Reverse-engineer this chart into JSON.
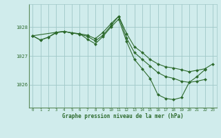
{
  "title": "Graphe pression niveau de la mer (hPa)",
  "bg_color": "#d0ecec",
  "grid_color": "#a0c8c8",
  "line_color": "#2d6a2d",
  "xlim_min": -0.5,
  "xlim_max": 23.5,
  "ylim_min": 1025.2,
  "ylim_max": 1028.8,
  "yticks": [
    1026,
    1027,
    1028
  ],
  "xticks": [
    0,
    1,
    2,
    3,
    4,
    5,
    6,
    7,
    8,
    9,
    10,
    11,
    12,
    13,
    14,
    15,
    16,
    17,
    18,
    19,
    20,
    21,
    22,
    23
  ],
  "series1": [
    1027.7,
    1027.55,
    1027.65,
    1027.8,
    1027.85,
    1027.8,
    1027.77,
    1027.72,
    1027.6,
    1027.82,
    1028.12,
    1028.38,
    1027.78,
    1027.32,
    1027.12,
    1026.88,
    1026.72,
    1026.62,
    1026.58,
    1026.52,
    1026.45,
    1026.5,
    1026.55,
    1026.72
  ],
  "series2": [
    1027.7,
    1027.55,
    1027.65,
    1027.82,
    1027.85,
    1027.8,
    1027.77,
    1027.58,
    1027.42,
    1027.68,
    1028.0,
    1028.28,
    1027.5,
    1026.88,
    1026.55,
    1026.22,
    1025.65,
    1025.52,
    1025.48,
    1025.55,
    1026.08,
    1026.28,
    1026.52,
    null
  ],
  "series3": [
    1027.7,
    null,
    null,
    1027.82,
    1027.85,
    1027.8,
    1027.75,
    1027.68,
    1027.52,
    1027.72,
    1028.05,
    1028.38,
    1027.62,
    1027.12,
    1026.88,
    1026.65,
    1026.42,
    1026.28,
    1026.22,
    1026.12,
    1026.08,
    1026.12,
    1026.18,
    null
  ]
}
